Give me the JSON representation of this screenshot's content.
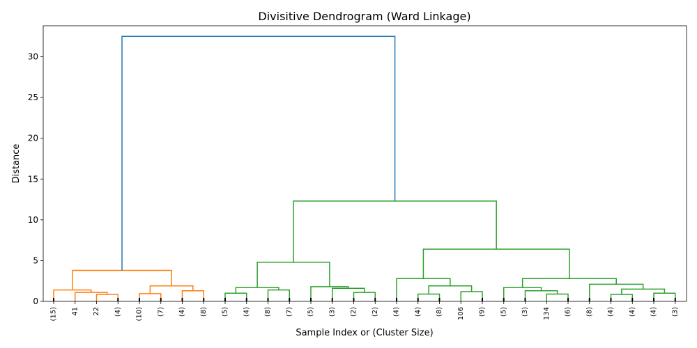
{
  "chart_data": {
    "type": "dendrogram",
    "title": "Divisitive Dendrogram (Ward Linkage)",
    "xlabel": "Sample Index or (Cluster Size)",
    "ylabel": "Distance",
    "ylim": [
      0,
      33.8
    ],
    "yticks": [
      0,
      5,
      10,
      15,
      20,
      25,
      30
    ],
    "grid": false,
    "colors": {
      "root": "#1f77b4",
      "cluster_1": "#ff7f0e",
      "cluster_2": "#2ca02c"
    },
    "leaves": [
      "(15)",
      "41",
      "22",
      "(4)",
      "(10)",
      "(7)",
      "(4)",
      "(8)",
      "(5)",
      "(4)",
      "(8)",
      "(7)",
      "(5)",
      "(3)",
      "(2)",
      "(2)",
      "(4)",
      "(4)",
      "(8)",
      "106",
      "(9)",
      "(5)",
      "(3)",
      "134",
      "(6)",
      "(8)",
      "(4)",
      "(4)",
      "(4)",
      "(3)"
    ],
    "merges": [
      {
        "left": "L2",
        "right": "L3",
        "height": 0.85,
        "color": "cluster_1"
      },
      {
        "left": "L1",
        "right": "N0",
        "height": 1.1,
        "color": "cluster_1"
      },
      {
        "left": "L0",
        "right": "N1",
        "height": 1.4,
        "color": "cluster_1"
      },
      {
        "left": "L4",
        "right": "L5",
        "height": 0.95,
        "color": "cluster_1"
      },
      {
        "left": "L6",
        "right": "L7",
        "height": 1.3,
        "color": "cluster_1"
      },
      {
        "left": "N3",
        "right": "N4",
        "height": 1.9,
        "color": "cluster_1"
      },
      {
        "left": "N2",
        "right": "N5",
        "height": 3.8,
        "color": "cluster_1"
      },
      {
        "left": "L8",
        "right": "L9",
        "height": 1.0,
        "color": "cluster_2"
      },
      {
        "left": "L10",
        "right": "L11",
        "height": 1.4,
        "color": "cluster_2"
      },
      {
        "left": "N7",
        "right": "N8",
        "height": 1.7,
        "color": "cluster_2"
      },
      {
        "left": "L14",
        "right": "L15",
        "height": 1.1,
        "color": "cluster_2"
      },
      {
        "left": "L13",
        "right": "N10",
        "height": 1.6,
        "color": "cluster_2"
      },
      {
        "left": "L12",
        "right": "N11",
        "height": 1.8,
        "color": "cluster_2"
      },
      {
        "left": "N9",
        "right": "N12",
        "height": 4.8,
        "color": "cluster_2"
      },
      {
        "left": "L17",
        "right": "L18",
        "height": 0.9,
        "color": "cluster_2"
      },
      {
        "left": "L19",
        "right": "L20",
        "height": 1.2,
        "color": "cluster_2"
      },
      {
        "left": "N14",
        "right": "N15",
        "height": 1.9,
        "color": "cluster_2"
      },
      {
        "left": "L16",
        "right": "N16",
        "height": 2.8,
        "color": "cluster_2"
      },
      {
        "left": "L23",
        "right": "L24",
        "height": 0.9,
        "color": "cluster_2"
      },
      {
        "left": "L22",
        "right": "N18",
        "height": 1.3,
        "color": "cluster_2"
      },
      {
        "left": "L21",
        "right": "N19",
        "height": 1.7,
        "color": "cluster_2"
      },
      {
        "left": "L26",
        "right": "L27",
        "height": 0.85,
        "color": "cluster_2"
      },
      {
        "left": "L28",
        "right": "L29",
        "height": 1.0,
        "color": "cluster_2"
      },
      {
        "left": "N21",
        "right": "N22",
        "height": 1.5,
        "color": "cluster_2"
      },
      {
        "left": "L25",
        "right": "N23",
        "height": 2.1,
        "color": "cluster_2"
      },
      {
        "left": "N20",
        "right": "N24",
        "height": 2.8,
        "color": "cluster_2"
      },
      {
        "left": "N17",
        "right": "N25",
        "height": 6.4,
        "color": "cluster_2"
      },
      {
        "left": "N13",
        "right": "N26",
        "height": 12.3,
        "color": "cluster_2"
      },
      {
        "left": "N6",
        "right": "N27",
        "height": 32.5,
        "color": "root"
      }
    ]
  }
}
